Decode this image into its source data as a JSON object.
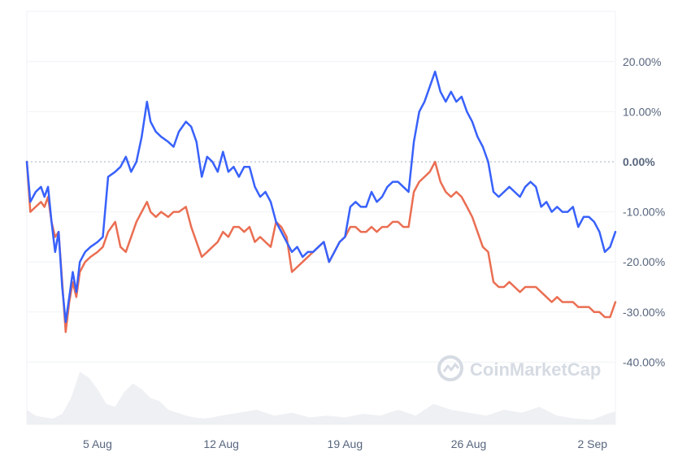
{
  "chart_data": {
    "type": "line",
    "title": "",
    "xlabel": "",
    "ylabel": "",
    "y_unit": "%",
    "ylim": [
      -50,
      27
    ],
    "y_ticks": [
      "20.00%",
      "10.00%",
      "0.00%",
      "-10.00%",
      "-20.00%",
      "-30.00%",
      "-40.00%"
    ],
    "y_tick_values": [
      20,
      10,
      0,
      -10,
      -20,
      -30,
      -40
    ],
    "x_range_days": [
      "Aug 1",
      "Sep 3"
    ],
    "x_ticks": [
      "5 Aug",
      "12 Aug",
      "19 Aug",
      "26 Aug",
      "2 Sep"
    ],
    "zero_line": "dotted",
    "grid": "horizontal",
    "legend": "none",
    "series": [
      {
        "color": "#3861fb",
        "x_day_of_august": [
          1.0,
          1.2,
          1.5,
          1.8,
          2.0,
          2.2,
          2.4,
          2.6,
          2.8,
          3.0,
          3.2,
          3.4,
          3.6,
          3.8,
          4.0,
          4.3,
          4.6,
          5.0,
          5.3,
          5.6,
          6.0,
          6.3,
          6.6,
          6.9,
          7.2,
          7.5,
          7.8,
          8.0,
          8.3,
          8.6,
          9.0,
          9.3,
          9.6,
          10.0,
          10.3,
          10.6,
          10.9,
          11.2,
          11.5,
          11.8,
          12.1,
          12.4,
          12.7,
          13.0,
          13.3,
          13.6,
          13.9,
          14.2,
          14.5,
          14.8,
          15.1,
          15.4,
          15.7,
          16.0,
          16.3,
          16.6,
          16.9,
          17.2,
          17.5,
          17.8,
          18.1,
          18.4,
          18.7,
          19.0,
          19.3,
          19.6,
          19.9,
          20.2,
          20.5,
          20.8,
          21.1,
          21.4,
          21.7,
          22.0,
          22.3,
          22.6,
          22.9,
          23.2,
          23.5,
          23.8,
          24.1,
          24.4,
          24.7,
          25.0,
          25.3,
          25.6,
          25.9,
          26.2,
          26.5,
          26.8,
          27.1,
          27.4,
          27.7,
          28.0,
          28.3,
          28.6,
          28.9,
          29.2,
          29.5,
          29.8,
          30.1,
          30.4,
          30.7,
          31.0,
          31.3,
          31.6,
          31.9,
          32.2,
          32.5,
          32.8,
          33.1,
          33.4,
          33.7,
          34.0,
          34.3
        ],
        "values": [
          0,
          -8,
          -6,
          -5,
          -7,
          -5,
          -12,
          -18,
          -14,
          -25,
          -32,
          -27,
          -22,
          -26,
          -20,
          -18,
          -17,
          -16,
          -15,
          -3,
          -2,
          -1,
          1,
          -2,
          0,
          5,
          12,
          8,
          6,
          5,
          4,
          3,
          6,
          8,
          7,
          4,
          -3,
          1,
          0,
          -2,
          2,
          -2,
          -1,
          -3,
          -1,
          -1,
          -5,
          -7,
          -6,
          -8,
          -12,
          -14,
          -16,
          -18,
          -17,
          -19,
          -18,
          -18,
          -17,
          -16,
          -20,
          -18,
          -16,
          -15,
          -9,
          -8,
          -9,
          -9,
          -6,
          -8,
          -7,
          -5,
          -4,
          -4,
          -5,
          -6,
          4,
          10,
          12,
          15,
          18,
          14,
          12,
          14,
          12,
          13,
          10,
          8,
          5,
          3,
          0,
          -6,
          -7,
          -6,
          -5,
          -6,
          -7,
          -5,
          -4,
          -5,
          -9,
          -8,
          -10,
          -9,
          -10,
          -10,
          -9,
          -13,
          -11,
          -11,
          -12,
          -14,
          -18,
          -17,
          -14
        ]
      },
      {
        "color": "#ea6e52",
        "x_day_of_august": [
          1.0,
          1.2,
          1.5,
          1.8,
          2.0,
          2.2,
          2.4,
          2.6,
          2.8,
          3.0,
          3.2,
          3.4,
          3.6,
          3.8,
          4.0,
          4.3,
          4.6,
          5.0,
          5.3,
          5.6,
          6.0,
          6.3,
          6.6,
          6.9,
          7.2,
          7.5,
          7.8,
          8.0,
          8.3,
          8.6,
          9.0,
          9.3,
          9.6,
          10.0,
          10.3,
          10.6,
          10.9,
          11.2,
          11.5,
          11.8,
          12.1,
          12.4,
          12.7,
          13.0,
          13.3,
          13.6,
          13.9,
          14.2,
          14.5,
          14.8,
          15.1,
          15.4,
          15.7,
          16.0,
          16.3,
          16.6,
          16.9,
          17.2,
          17.5,
          17.8,
          18.1,
          18.4,
          18.7,
          19.0,
          19.3,
          19.6,
          19.9,
          20.2,
          20.5,
          20.8,
          21.1,
          21.4,
          21.7,
          22.0,
          22.3,
          22.6,
          22.9,
          23.2,
          23.5,
          23.8,
          24.1,
          24.4,
          24.7,
          25.0,
          25.3,
          25.6,
          25.9,
          26.2,
          26.5,
          26.8,
          27.1,
          27.4,
          27.7,
          28.0,
          28.3,
          28.6,
          28.9,
          29.2,
          29.5,
          29.8,
          30.1,
          30.4,
          30.7,
          31.0,
          31.3,
          31.6,
          31.9,
          32.2,
          32.5,
          32.8,
          33.1,
          33.4,
          33.7,
          34.0,
          34.3
        ],
        "values": [
          0,
          -10,
          -9,
          -8,
          -9,
          -7,
          -12,
          -15,
          -14,
          -24,
          -34,
          -28,
          -24,
          -27,
          -22,
          -20,
          -19,
          -18,
          -17,
          -14,
          -12,
          -17,
          -18,
          -15,
          -12,
          -10,
          -8,
          -10,
          -11,
          -10,
          -11,
          -10,
          -10,
          -9,
          -13,
          -16,
          -19,
          -18,
          -17,
          -16,
          -14,
          -15,
          -13,
          -13,
          -14,
          -13,
          -16,
          -15,
          -16,
          -17,
          -12,
          -13,
          -15,
          -22,
          -21,
          -20,
          -19,
          -18,
          -17,
          -16,
          -20,
          -18,
          -16,
          -15,
          -13,
          -13,
          -14,
          -14,
          -13,
          -14,
          -13,
          -13,
          -12,
          -12,
          -13,
          -13,
          -6,
          -4,
          -3,
          -2,
          0,
          -4,
          -6,
          -7,
          -6,
          -7,
          -9,
          -11,
          -14,
          -17,
          -18,
          -24,
          -25,
          -25,
          -24,
          -25,
          -26,
          -25,
          -25,
          -25,
          -26,
          -27,
          -28,
          -27,
          -28,
          -28,
          -28,
          -29,
          -29,
          -29,
          -30,
          -30,
          -31,
          -31,
          -28
        ]
      }
    ],
    "volume": {
      "color": "#eef0f3",
      "x_day_of_august": [
        1.0,
        1.5,
        2.0,
        2.5,
        3.0,
        3.5,
        4.0,
        4.5,
        5.0,
        5.5,
        6.0,
        6.5,
        7.0,
        7.5,
        8.0,
        8.5,
        9.0,
        9.5,
        10.0,
        10.5,
        11.0,
        11.5,
        12.0,
        13.0,
        14.0,
        15.0,
        16.0,
        17.0,
        18.0,
        19.0,
        20.0,
        21.0,
        22.0,
        23.0,
        24.0,
        25.0,
        26.0,
        27.0,
        28.0,
        29.0,
        30.0,
        31.0,
        32.0,
        33.0,
        34.0,
        34.3
      ],
      "values": [
        0.25,
        0.15,
        0.12,
        0.1,
        0.18,
        0.45,
        0.9,
        0.8,
        0.6,
        0.35,
        0.3,
        0.55,
        0.7,
        0.6,
        0.45,
        0.4,
        0.25,
        0.2,
        0.15,
        0.12,
        0.1,
        0.12,
        0.15,
        0.2,
        0.25,
        0.15,
        0.2,
        0.12,
        0.15,
        0.12,
        0.18,
        0.15,
        0.25,
        0.15,
        0.35,
        0.25,
        0.2,
        0.15,
        0.25,
        0.2,
        0.3,
        0.15,
        0.1,
        0.08,
        0.2,
        0.22
      ]
    }
  },
  "watermark": {
    "text": "CoinMarketCap",
    "icon": "coinmarketcap-logo-icon"
  },
  "colors": {
    "grid": "#eff2f5",
    "zero_line": "#a6b0c3",
    "axis_text": "#58667e",
    "volume": "#eef0f3"
  }
}
